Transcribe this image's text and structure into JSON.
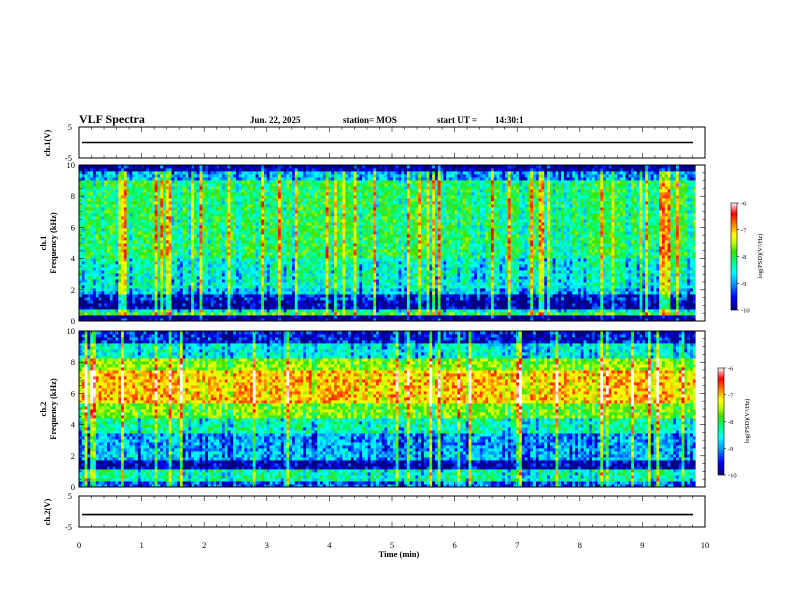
{
  "header": {
    "title": "VLF Spectra",
    "date": "Jun. 22, 2025",
    "station_label": "station= MOS",
    "start_ut_label": "start UT =",
    "start_ut_value": "14:30:1"
  },
  "chart_data": [
    {
      "id": "ch1-waveform",
      "type": "line",
      "ylabel": "ch.1(V)",
      "ylim": [
        -5,
        5
      ],
      "yticks": [
        "5",
        "-5"
      ],
      "xlim": [
        0,
        10
      ],
      "series": [
        {
          "values": [
            0,
            0
          ]
        }
      ]
    },
    {
      "id": "ch1-spectrogram",
      "type": "heatmap",
      "ylabel_channel": "ch.1",
      "ylabel": "Frequency (kHz)",
      "ylim": [
        0,
        10
      ],
      "yticks": [
        "0",
        "2",
        "4",
        "6",
        "8",
        "10"
      ],
      "xlim": [
        0,
        10
      ],
      "bands": [
        [
          0.3,
          0.5
        ],
        [
          0.5,
          0.7
        ],
        [
          0.7,
          1.4
        ],
        [
          1.4,
          1.8
        ],
        [
          1.8,
          2.2
        ],
        [
          2.2,
          4.0
        ],
        [
          4.0,
          9.0
        ],
        [
          9.0,
          9.6
        ],
        [
          9.6,
          10
        ]
      ],
      "band_levels": [
        -8.0,
        -8.6,
        -9.8,
        -9.6,
        -8.9,
        -8.6,
        -8.2,
        -9.0,
        -9.9
      ],
      "colorbar": {
        "label": "log(PSD)(V²/Hz)",
        "min": -10,
        "max": -6,
        "ticks": [
          "-6",
          "-7",
          "-8",
          "-9",
          "-10"
        ]
      }
    },
    {
      "id": "ch2-spectrogram",
      "type": "heatmap",
      "ylabel_channel": "ch.2",
      "ylabel": "Frequency (kHz)",
      "ylim": [
        0,
        10
      ],
      "yticks": [
        "0",
        "2",
        "4",
        "6",
        "8",
        "10"
      ],
      "xlim": [
        0,
        10
      ],
      "bands": [
        [
          0,
          0.4
        ],
        [
          0.4,
          1.2
        ],
        [
          1.2,
          1.7
        ],
        [
          1.7,
          2.4
        ],
        [
          2.4,
          3.4
        ],
        [
          3.4,
          4.5
        ],
        [
          4.5,
          5.3
        ],
        [
          5.3,
          7.5
        ],
        [
          7.5,
          8.3
        ],
        [
          8.3,
          9.3
        ],
        [
          9.3,
          10
        ]
      ],
      "band_levels": [
        -9.3,
        -8.5,
        -9.8,
        -9.0,
        -9.1,
        -8.5,
        -7.8,
        -7.0,
        -7.7,
        -8.7,
        -9.6
      ],
      "colorbar": {
        "label": "log(PSD)(V²/Hz)",
        "min": -10,
        "max": -6,
        "ticks": [
          "-6",
          "-7",
          "-8",
          "-9",
          "-10"
        ]
      }
    },
    {
      "id": "ch2-waveform",
      "type": "line",
      "ylabel": "ch.2(V)",
      "ylim": [
        -5,
        5
      ],
      "yticks": [
        "5",
        "-5"
      ],
      "xlim": [
        0,
        10
      ],
      "series": [
        {
          "values": [
            -1,
            -1
          ]
        }
      ]
    }
  ],
  "xaxis": {
    "label": "Time (min)",
    "ticks": [
      "0",
      "1",
      "2",
      "3",
      "4",
      "5",
      "6",
      "7",
      "8",
      "9",
      "10"
    ]
  },
  "colors": {
    "colormap": [
      "#000080",
      "#0000ff",
      "#00a0ff",
      "#00ffff",
      "#00ff80",
      "#40e000",
      "#c0ff00",
      "#ffff00",
      "#ff8000",
      "#ff0000",
      "#ffffff"
    ]
  }
}
